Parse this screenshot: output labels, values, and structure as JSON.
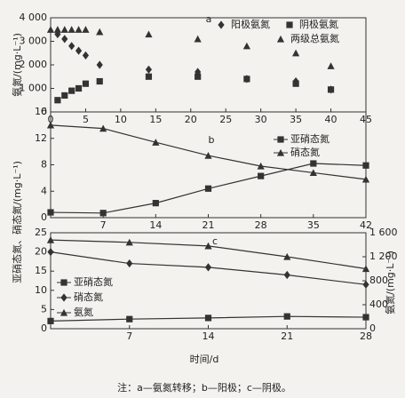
{
  "chart_data": [
    {
      "type": "scatter",
      "label": "a",
      "ylabel": "氨氮/(mg·L⁻¹)",
      "xlim": [
        0,
        45
      ],
      "xticks": [
        0,
        5,
        10,
        15,
        20,
        25,
        30,
        35,
        40,
        45
      ],
      "ylim": [
        0,
        4000
      ],
      "yticks": [
        0,
        {
          "value": 1000,
          "label": "1 000"
        },
        {
          "value": 2000,
          "label": "2 000"
        },
        {
          "value": 3000,
          "label": "3 000"
        },
        {
          "value": 4000,
          "label": "4 000"
        }
      ],
      "series": [
        {
          "name": "阳极氨氮",
          "marker": "diamond",
          "color": "#333333",
          "x": [
            1,
            2,
            3,
            4,
            5,
            7,
            14,
            21,
            28,
            35,
            40
          ],
          "values": [
            3300,
            3100,
            2800,
            2600,
            2400,
            2000,
            1800,
            1700,
            1400,
            1300,
            950
          ]
        },
        {
          "name": "阴极氨氮",
          "marker": "square",
          "color": "#333333",
          "x": [
            1,
            2,
            3,
            4,
            5,
            7,
            14,
            21,
            28,
            35,
            40
          ],
          "values": [
            500,
            700,
            900,
            1000,
            1200,
            1300,
            1500,
            1500,
            1400,
            1200,
            950
          ]
        },
        {
          "name": "两级总氨氮",
          "marker": "triangle",
          "color": "#333333",
          "x": [
            0,
            1,
            2,
            3,
            4,
            5,
            7,
            14,
            21,
            28,
            35,
            40
          ],
          "values": [
            3500,
            3500,
            3500,
            3500,
            3500,
            3500,
            3400,
            3300,
            3100,
            2800,
            2500,
            1950
          ]
        }
      ]
    },
    {
      "type": "line",
      "label": "b",
      "ylabel": "亚硝态氮、硝态氮/(mg·L⁻¹)",
      "x": [
        0,
        7,
        14,
        21,
        28,
        35,
        42
      ],
      "xlim": [
        0,
        42
      ],
      "xticks": [
        7,
        14,
        21,
        28,
        35,
        42
      ],
      "ylim": [
        0,
        16
      ],
      "yticks": [
        0,
        4,
        8,
        12,
        16
      ],
      "series": [
        {
          "name": "亚硝态氮",
          "marker": "square",
          "color": "#333333",
          "values": [
            0.8,
            0.7,
            2.2,
            4.4,
            6.3,
            8.2,
            7.9
          ]
        },
        {
          "name": "硝态氮",
          "marker": "triangle",
          "color": "#333333",
          "values": [
            14,
            13.5,
            11.4,
            9.4,
            7.8,
            6.8,
            5.8
          ]
        }
      ]
    },
    {
      "type": "line",
      "label": "c",
      "xlabel": "时间/d",
      "y2label": "氨氮/(mg·L⁻¹)",
      "x": [
        0,
        7,
        14,
        21,
        28
      ],
      "xlim": [
        0,
        28
      ],
      "xticks": [
        7,
        14,
        21,
        28
      ],
      "ylim": [
        0,
        25
      ],
      "yticks": [
        0,
        5,
        10,
        15,
        20,
        25
      ],
      "y2lim": [
        0,
        1600
      ],
      "y2ticks": [
        0,
        400,
        800,
        {
          "value": 1200,
          "label": "1 200"
        },
        {
          "value": 1600,
          "label": "1 600"
        }
      ],
      "series": [
        {
          "name": "亚硝态氮",
          "marker": "square",
          "color": "#333333",
          "values": [
            2,
            2.5,
            2.8,
            3.2,
            3
          ]
        },
        {
          "name": "硝态氮",
          "marker": "diamond",
          "color": "#333333",
          "values": [
            20,
            17,
            16,
            14,
            11.5
          ]
        },
        {
          "name": "氨氮",
          "marker": "triangle",
          "color": "#333333",
          "axis": "y2",
          "values": [
            1480,
            1440,
            1380,
            1200,
            1000
          ]
        }
      ]
    }
  ],
  "note": "注：a—氨氮转移；b—阳极；c—阴极。"
}
